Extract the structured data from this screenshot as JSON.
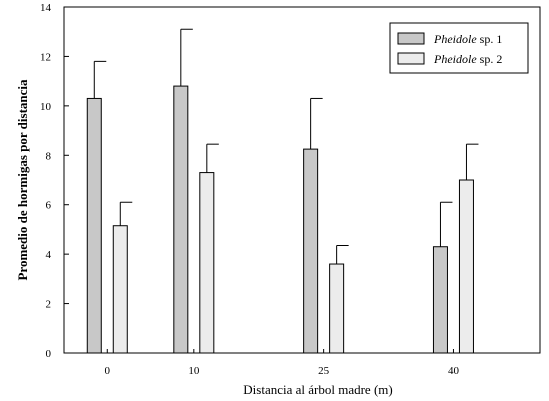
{
  "chart_data": {
    "type": "bar",
    "x": [
      0,
      10,
      25,
      40
    ],
    "categories": [
      "0",
      "10",
      "25",
      "40"
    ],
    "series": [
      {
        "name": "Pheidole sp. 1",
        "name_italic": "Pheidole",
        "name_rest": "sp. 1",
        "color": "#c8c8c8",
        "values": [
          10.3,
          10.8,
          8.25,
          4.3
        ],
        "errors": [
          1.5,
          2.3,
          2.05,
          1.8
        ]
      },
      {
        "name": "Pheidole sp. 2",
        "name_italic": "Pheidole",
        "name_rest": "sp. 2",
        "color": "#ececec",
        "values": [
          5.15,
          7.3,
          3.6,
          7.0
        ],
        "errors": [
          0.95,
          1.15,
          0.75,
          1.45
        ]
      }
    ],
    "xlabel": "Distancia al árbol madre (m)",
    "ylabel": "Promedio de hormigas por distancia",
    "ylim": [
      0,
      14
    ],
    "yticks": [
      "0",
      "2",
      "4",
      "6",
      "8",
      "10",
      "12",
      "14"
    ],
    "grid": false,
    "legend_position": "top-right"
  }
}
